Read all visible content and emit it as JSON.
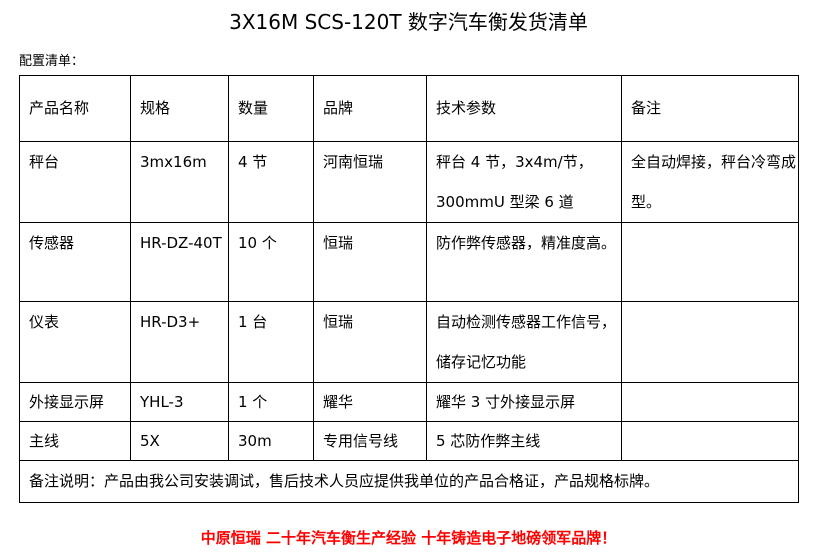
{
  "title": "3X16M SCS-120T 数字汽车衡发货清单",
  "subtitle": "配置清单：",
  "table": {
    "headers": [
      "产品名称",
      "规格",
      "数量",
      "品牌",
      "技术参数",
      "备注"
    ],
    "rows": [
      [
        "秤台",
        "3mx16m",
        "4 节",
        "河南恒瑞",
        "秤台 4 节，3x4m/节，300mmU 型梁 6 道",
        "全自动焊接，秤台冷弯成型。"
      ],
      [
        "传感器",
        "HR-DZ-40T",
        "10 个",
        "恒瑞",
        "防作弊传感器，精准度高。",
        ""
      ],
      [
        "仪表",
        "HR-D3+",
        "1 台",
        "恒瑞",
        "自动检测传感器工作信号，储存记忆功能",
        ""
      ],
      [
        "外接显示屏",
        "YHL-3",
        "1 个",
        "耀华",
        "耀华 3 寸外接显示屏",
        ""
      ],
      [
        "主线",
        "5X",
        "30m",
        "专用信号线",
        "5 芯防作弊主线",
        ""
      ]
    ],
    "note": "备注说明：产品由我公司安装调试，售后技术人员应提供我单位的产品合格证，产品规格标牌。"
  },
  "footer": "中原恒瑞 二十年汽车衡生产经验 十年铸造电子地磅领军品牌！",
  "colors": {
    "footer": "#ff0000"
  }
}
